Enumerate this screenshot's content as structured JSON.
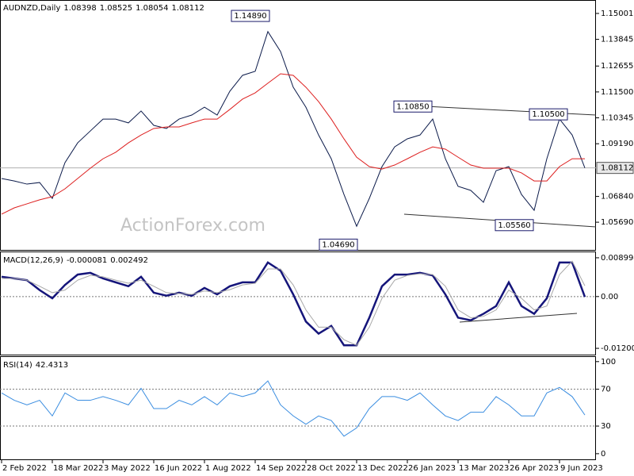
{
  "chart_data": [
    {
      "type": "line",
      "title": "AUDNZD,Daily",
      "header_values": [
        1.08398,
        1.08525,
        1.08054,
        1.08112
      ],
      "watermark": "ActionForex.com",
      "current_value": 1.08112,
      "ylim": [
        1.0442,
        1.156
      ],
      "yticks": [
        1.15001,
        1.13845,
        1.12655,
        {
          "value": 1.115,
          "label": "1.11500"
        },
        1.10345,
        {
          "value": 1.0919,
          "label": "1.09190"
        },
        {
          "value": 1.0684,
          "label": "1.06840"
        },
        {
          "value": 1.0569,
          "label": "1.05690"
        }
      ],
      "annotations": [
        {
          "value": 1.1489,
          "label": "1.14890"
        },
        {
          "value": 1.1085,
          "label": "1.10850"
        },
        {
          "value": 1.105,
          "label": "1.10500"
        },
        {
          "value": 1.0556,
          "label": "1.05560"
        },
        {
          "value": 1.0469,
          "label": "1.04690"
        }
      ],
      "series": [
        {
          "name": "AUDNZD",
          "color": "#0b1a4a",
          "width": 1,
          "values": [
            1.0764,
            1.0753,
            1.0739,
            1.0746,
            1.0675,
            1.0835,
            1.0923,
            1.0976,
            1.1029,
            1.1029,
            1.1012,
            1.1065,
            1.1001,
            1.0987,
            1.1029,
            1.1047,
            1.1082,
            1.1047,
            1.1153,
            1.1224,
            1.1242,
            1.1419,
            1.133,
            1.1171,
            1.1082,
            1.0958,
            1.0852,
            1.0693,
            1.0551,
            1.0675,
            1.0817,
            1.0905,
            1.0941,
            1.0958,
            1.1029,
            1.0852,
            1.0729,
            1.0711,
            1.0658,
            1.0799,
            1.0817,
            1.0693,
            1.0622,
            1.0852,
            1.1029,
            1.0958,
            1.0811
          ]
        },
        {
          "name": "MA",
          "color": "#dd1f1f",
          "width": 1,
          "values": [
            1.0605,
            1.0633,
            1.0651,
            1.0669,
            1.0683,
            1.0718,
            1.0764,
            1.081,
            1.0852,
            1.0881,
            1.0923,
            1.0958,
            1.0987,
            1.0994,
            1.0994,
            1.1012,
            1.1029,
            1.1029,
            1.1072,
            1.1118,
            1.1146,
            1.1189,
            1.1231,
            1.1224,
            1.1171,
            1.1107,
            1.1029,
            1.0941,
            1.0859,
            1.0817,
            1.0806,
            1.0824,
            1.0852,
            1.0881,
            1.0905,
            1.0895,
            1.0859,
            1.0824,
            1.081,
            1.081,
            1.081,
            1.0789,
            1.0753,
            1.0753,
            1.0817,
            1.0852,
            1.0852
          ]
        }
      ]
    },
    {
      "type": "line",
      "title": "MACD(12,26,9)",
      "header_values": [
        -8.1e-05,
        0.002492
      ],
      "ylim": [
        -0.01365,
        0.01027
      ],
      "yticks": [
        0.008994,
        {
          "value": 0,
          "label": "0.00"
        },
        -0.012008
      ],
      "dotted_grid": [
        false,
        true,
        false
      ],
      "series": [
        {
          "name": "MACD",
          "color": "#15157a",
          "width": 2.5,
          "values": [
            0.0046,
            0.0042,
            0.0038,
            0.0015,
            -0.0004,
            0.0027,
            0.0051,
            0.0055,
            0.0042,
            0.0033,
            0.0024,
            0.0046,
            0.0009,
            0.0002,
            0.0009,
            0.0002,
            0.002,
            0.0005,
            0.0024,
            0.0033,
            0.0033,
            0.0079,
            0.006,
            0.0005,
            -0.0058,
            -0.0086,
            -0.0068,
            -0.0113,
            -0.0113,
            -0.0049,
            0.0024,
            0.0051,
            0.0051,
            0.0055,
            0.0049,
            0.0005,
            -0.0049,
            -0.0055,
            -0.004,
            -0.0022,
            0.0033,
            -0.0022,
            -0.004,
            -0.0004,
            0.0079,
            0.0079,
            -0.0001
          ]
        },
        {
          "name": "Signal",
          "color": "#a8a8a8",
          "width": 1,
          "values": [
            0.0042,
            0.0042,
            0.0038,
            0.0024,
            0.0009,
            0.0015,
            0.0038,
            0.0049,
            0.0046,
            0.0038,
            0.0031,
            0.0038,
            0.0024,
            0.0009,
            0.0007,
            0.0005,
            0.0013,
            0.0009,
            0.0016,
            0.0027,
            0.0031,
            0.0064,
            0.0064,
            0.0027,
            -0.0031,
            -0.0071,
            -0.0071,
            -0.01,
            -0.0113,
            -0.0071,
            -0.0004,
            0.0038,
            0.0049,
            0.0053,
            0.0051,
            0.0024,
            -0.0031,
            -0.0049,
            -0.0046,
            -0.0031,
            0.0015,
            -0.0004,
            -0.0031,
            -0.0022,
            0.0051,
            0.0082,
            0.0025
          ]
        }
      ]
    },
    {
      "type": "line",
      "title": "RSI(14)",
      "header_values": [
        42.4313
      ],
      "ylim": [
        -7,
        105
      ],
      "yticks": [
        100,
        70,
        30,
        0
      ],
      "dotted_grid": [
        false,
        true,
        true,
        false
      ],
      "categories": [
        "2 Feb 2022",
        null,
        null,
        null,
        "18 Mar 2022",
        null,
        null,
        null,
        "3 May 2022",
        null,
        null,
        null,
        "16 Jun 2022",
        null,
        null,
        null,
        "1 Aug 2022",
        null,
        null,
        null,
        "14 Sep 2022",
        null,
        null,
        null,
        "28 Oct 2022",
        null,
        null,
        null,
        "13 Dec 2022",
        null,
        null,
        null,
        "26 Jan 2023",
        null,
        null,
        null,
        "13 Mar 2023",
        null,
        null,
        null,
        "26 Apr 2023",
        null,
        null,
        null,
        "9 Jun 2023",
        null,
        null
      ],
      "series": [
        {
          "name": "RSI",
          "color": "#3a8de0",
          "width": 1,
          "values": [
            66,
            58,
            53,
            58,
            41,
            66,
            58,
            58,
            62,
            58,
            53,
            71,
            49,
            49,
            58,
            53,
            62,
            53,
            66,
            62,
            66,
            79,
            53,
            41,
            32,
            41,
            36,
            19,
            28,
            49,
            62,
            62,
            58,
            66,
            53,
            41,
            36,
            45,
            45,
            62,
            53,
            41,
            41,
            66,
            72,
            62,
            42
          ]
        }
      ]
    }
  ]
}
